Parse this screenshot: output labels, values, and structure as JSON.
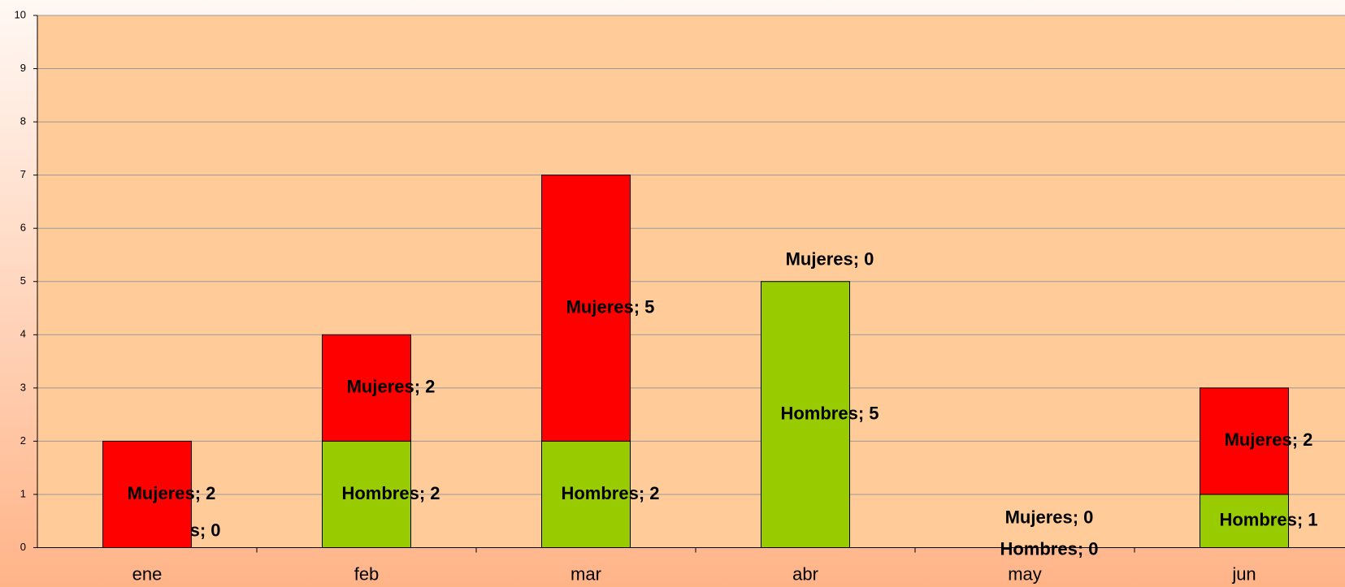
{
  "chart_data": {
    "type": "stacked_bar",
    "categories": [
      "ene",
      "feb",
      "mar",
      "abr",
      "may",
      "jun"
    ],
    "series": [
      {
        "name": "Hombres",
        "color": "#99cc00",
        "values": [
          0,
          2,
          2,
          5,
          0,
          1
        ],
        "value_labels": [
          "Hombres; 0",
          "Hombres; 2",
          "Hombres; 2",
          "Hombres; 5",
          "Hombres; 0",
          "Hombres; 1"
        ]
      },
      {
        "name": "Mujeres",
        "color": "#ff0000",
        "values": [
          2,
          2,
          5,
          0,
          0,
          2
        ],
        "value_labels": [
          "Mujeres; 2",
          "Mujeres; 2",
          "Mujeres; 5",
          "Mujeres; 0",
          "Mujeres; 0",
          "Mujeres; 2"
        ]
      }
    ],
    "ylim": [
      0,
      10
    ],
    "yticks": [
      0,
      1,
      2,
      3,
      4,
      5,
      6,
      7,
      8,
      9,
      10
    ],
    "grid": true
  }
}
